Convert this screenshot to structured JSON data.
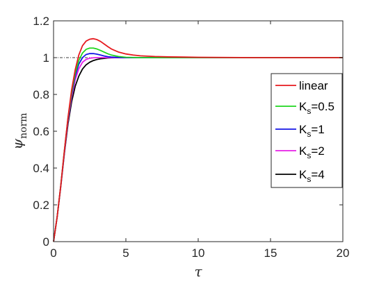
{
  "chart_data": {
    "type": "line",
    "xlabel": "τ",
    "ylabel": {
      "main": "ψ",
      "subscript": "norm"
    },
    "xlim": [
      0,
      20
    ],
    "ylim": [
      0,
      1.2
    ],
    "xticks": [
      0,
      5,
      10,
      15,
      20
    ],
    "xtick_labels": [
      "0",
      "5",
      "10",
      "15",
      "20"
    ],
    "yticks": [
      0,
      0.2,
      0.4,
      0.6,
      0.8,
      1.0,
      1.2
    ],
    "ytick_labels": [
      "0",
      "0.2",
      "0.4",
      "0.6",
      "0.8",
      "1",
      "1.2"
    ],
    "grid": false,
    "legend_position": "right",
    "reference_line": {
      "y": 1.0,
      "style": "dash-dot",
      "color": "#000000"
    },
    "x": [
      0,
      0.25,
      0.5,
      0.75,
      1.0,
      1.25,
      1.5,
      1.75,
      2.0,
      2.25,
      2.5,
      2.75,
      3.0,
      3.25,
      3.5,
      3.75,
      4.0,
      4.5,
      5.0,
      5.5,
      6.0,
      7.0,
      8.0,
      9.0,
      10.0,
      12.0,
      14.0,
      16.0,
      18.0,
      20.0
    ],
    "series": [
      {
        "name": "linear",
        "color": "#e6191e",
        "values": [
          0,
          0.135,
          0.305,
          0.495,
          0.675,
          0.825,
          0.935,
          1.015,
          1.065,
          1.09,
          1.1,
          1.103,
          1.098,
          1.088,
          1.074,
          1.06,
          1.047,
          1.03,
          1.02,
          1.014,
          1.01,
          1.006,
          1.004,
          1.003,
          1.002,
          1.001,
          1.0,
          1.0,
          1.0,
          1.0
        ]
      },
      {
        "name_main": "K",
        "name_sub": "s",
        "name_suffix": "=0.5",
        "color": "#1ed61e",
        "values": [
          0,
          0.135,
          0.305,
          0.495,
          0.67,
          0.81,
          0.915,
          0.985,
          1.025,
          1.045,
          1.052,
          1.052,
          1.047,
          1.039,
          1.03,
          1.021,
          1.014,
          1.006,
          1.002,
          1.001,
          1.0,
          1.0,
          1.0,
          1.0,
          1.0,
          1.0,
          1.0,
          1.0,
          1.0,
          1.0
        ]
      },
      {
        "name_main": "K",
        "name_sub": "s",
        "name_suffix": "=1",
        "color": "#1414e6",
        "values": [
          0,
          0.135,
          0.305,
          0.49,
          0.665,
          0.8,
          0.9,
          0.965,
          1.0,
          1.017,
          1.022,
          1.022,
          1.019,
          1.014,
          1.009,
          1.005,
          1.003,
          1.001,
          1.0,
          1.0,
          1.0,
          1.0,
          1.0,
          1.0,
          1.0,
          1.0,
          1.0,
          1.0,
          1.0,
          1.0
        ]
      },
      {
        "name_main": "K",
        "name_sub": "s",
        "name_suffix": "=2",
        "color": "#e61ee6",
        "values": [
          0,
          0.135,
          0.3,
          0.485,
          0.655,
          0.785,
          0.88,
          0.94,
          0.975,
          0.99,
          0.997,
          0.999,
          1.0,
          1.0,
          1.0,
          1.0,
          1.0,
          1.0,
          1.0,
          1.0,
          1.0,
          1.0,
          1.0,
          1.0,
          1.0,
          1.0,
          1.0,
          1.0,
          1.0,
          1.0
        ]
      },
      {
        "name_main": "K",
        "name_sub": "s",
        "name_suffix": "=4",
        "color": "#000000",
        "values": [
          0,
          0.135,
          0.3,
          0.48,
          0.64,
          0.76,
          0.845,
          0.9,
          0.938,
          0.961,
          0.975,
          0.984,
          0.99,
          0.994,
          0.996,
          0.998,
          0.999,
          1.0,
          1.0,
          1.0,
          1.0,
          1.0,
          1.0,
          1.0,
          1.0,
          1.0,
          1.0,
          1.0,
          1.0,
          1.0
        ]
      }
    ]
  }
}
